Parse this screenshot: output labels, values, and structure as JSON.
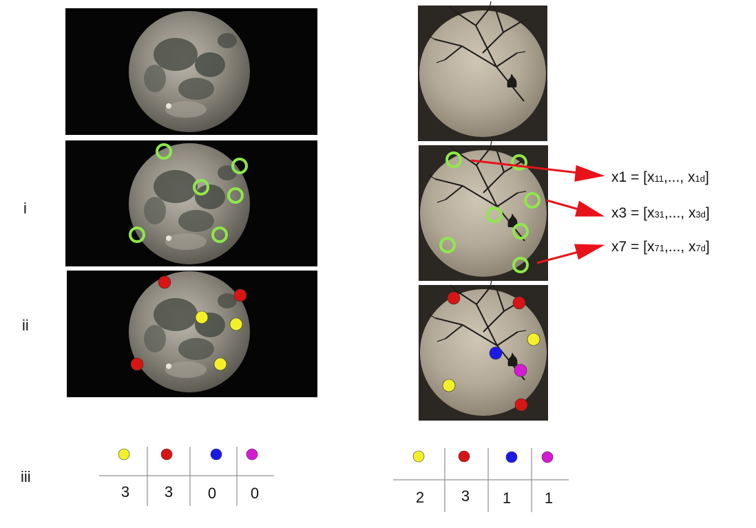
{
  "row_labels": [
    "i",
    "ii",
    "iii"
  ],
  "equations": [
    {
      "lhs": "x1",
      "sub1": "11",
      "sub2": "1d"
    },
    {
      "lhs": "x3",
      "sub1": "31",
      "sub2": "3d"
    },
    {
      "lhs": "x7",
      "sub1": "71",
      "sub2": "7d"
    }
  ],
  "colors": {
    "keypoint_ring": "#8ee84a",
    "arrow": "#e8131a",
    "yellow": "#f3f02a",
    "red": "#d91414",
    "blue": "#1a1ae6",
    "magenta": "#d61ad6"
  },
  "histogram_left": {
    "legend_colors": [
      "yellow",
      "red",
      "blue",
      "magenta"
    ],
    "counts": [
      "3",
      "3",
      "0",
      "0"
    ]
  },
  "histogram_right": {
    "legend_colors": [
      "yellow",
      "red",
      "blue",
      "magenta"
    ],
    "counts": [
      "2",
      "3",
      "1",
      "1"
    ]
  }
}
